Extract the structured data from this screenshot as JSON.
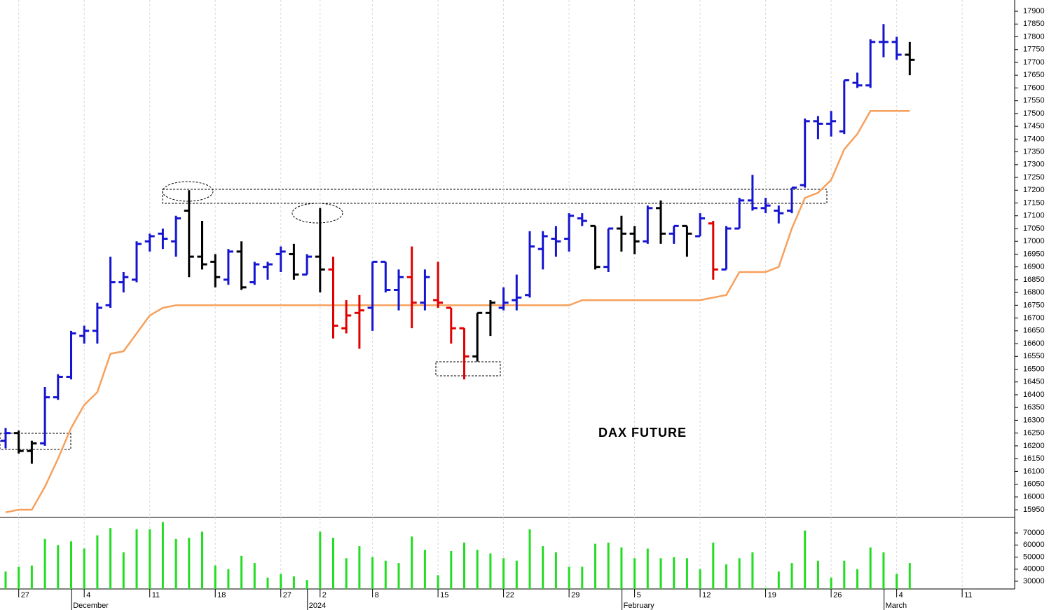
{
  "chart_data": {
    "type": "ohlc",
    "title": "DAX FUTURE",
    "categories": [
      null,
      "27",
      null,
      null,
      null,
      null,
      "4",
      null,
      null,
      null,
      null,
      "11",
      null,
      null,
      null,
      null,
      "18",
      null,
      null,
      null,
      null,
      "27",
      null,
      null,
      "2",
      null,
      null,
      null,
      "8",
      null,
      null,
      null,
      null,
      "15",
      null,
      null,
      null,
      null,
      "22",
      null,
      null,
      null,
      null,
      "29",
      null,
      null,
      null,
      null,
      "5",
      null,
      null,
      null,
      null,
      "12",
      null,
      null,
      null,
      null,
      "19",
      null,
      null,
      null,
      null,
      "26",
      null,
      null,
      null,
      null,
      "4",
      null,
      null,
      null,
      null,
      "11",
      null,
      null,
      null,
      null
    ],
    "month_labels": [
      null,
      null,
      null,
      null,
      null,
      null,
      "December",
      null,
      null,
      null,
      null,
      null,
      null,
      null,
      null,
      null,
      null,
      null,
      null,
      null,
      null,
      null,
      null,
      null,
      "2024",
      null,
      null,
      null,
      null,
      null,
      null,
      null,
      null,
      null,
      null,
      null,
      null,
      null,
      null,
      null,
      null,
      null,
      null,
      null,
      null,
      null,
      null,
      null,
      "February",
      null,
      null,
      null,
      null,
      null,
      null,
      null,
      null,
      null,
      null,
      null,
      null,
      null,
      null,
      null,
      null,
      null,
      null,
      null,
      "March",
      null,
      null,
      null,
      null,
      null,
      null,
      null,
      null,
      null
    ],
    "ohlc": [
      [
        16220,
        16270,
        16190,
        16250
      ],
      [
        16250,
        16260,
        16170,
        16180
      ],
      [
        16180,
        16220,
        16130,
        16210
      ],
      [
        16210,
        16430,
        16200,
        16390
      ],
      [
        16390,
        16480,
        16380,
        16470
      ],
      [
        16470,
        16650,
        16460,
        16640
      ],
      [
        16630,
        16670,
        16600,
        16650
      ],
      [
        16650,
        16760,
        16600,
        16740
      ],
      [
        16750,
        16940,
        16740,
        16840
      ],
      [
        16840,
        16880,
        16800,
        16860
      ],
      [
        16850,
        17000,
        16840,
        16990
      ],
      [
        17000,
        17030,
        16960,
        17020
      ],
      [
        17030,
        17050,
        16970,
        17010
      ],
      [
        17000,
        17100,
        16940,
        17090
      ],
      [
        17120,
        17200,
        16860,
        16940
      ],
      [
        16940,
        17080,
        16890,
        16910
      ],
      [
        16920,
        16950,
        16820,
        16860
      ],
      [
        16850,
        16970,
        16830,
        16960
      ],
      [
        16960,
        17000,
        16810,
        16820
      ],
      [
        16840,
        16920,
        16830,
        16910
      ],
      [
        16900,
        16920,
        16850,
        16910
      ],
      [
        16950,
        16980,
        16880,
        16960
      ],
      [
        16950,
        16990,
        16850,
        16870
      ],
      [
        16870,
        16950,
        16870,
        16940
      ],
      [
        16940,
        17130,
        16800,
        16890
      ],
      [
        16890,
        16940,
        16620,
        16670
      ],
      [
        16660,
        16770,
        16640,
        16710
      ],
      [
        16720,
        16790,
        16580,
        16730
      ],
      [
        16740,
        16920,
        16650,
        16920
      ],
      [
        16920,
        16920,
        16800,
        16810
      ],
      [
        16810,
        16890,
        16730,
        16860
      ],
      [
        16860,
        16980,
        16660,
        16760
      ],
      [
        16760,
        16890,
        16730,
        16860
      ],
      [
        16770,
        16920,
        16740,
        16760
      ],
      [
        16740,
        16740,
        16600,
        16660
      ],
      [
        16660,
        16660,
        16460,
        16550
      ],
      [
        16550,
        16720,
        16530,
        16720
      ],
      [
        16720,
        16770,
        16630,
        16760
      ],
      [
        16740,
        16820,
        16730,
        16760
      ],
      [
        16770,
        16870,
        16730,
        16780
      ],
      [
        16790,
        17040,
        16780,
        16980
      ],
      [
        16970,
        17040,
        16890,
        17020
      ],
      [
        17010,
        17060,
        16940,
        17000
      ],
      [
        17010,
        17110,
        16960,
        17100
      ],
      [
        17090,
        17110,
        17060,
        17080
      ],
      [
        17060,
        17060,
        16890,
        16900
      ],
      [
        16900,
        17050,
        16880,
        17050
      ],
      [
        17050,
        17100,
        16960,
        17030
      ],
      [
        17030,
        17060,
        16950,
        17000
      ],
      [
        17000,
        17140,
        16990,
        17130
      ],
      [
        17130,
        17160,
        16990,
        17030
      ],
      [
        17030,
        17060,
        16990,
        17060
      ],
      [
        17060,
        17060,
        16940,
        17030
      ],
      [
        17020,
        17110,
        17020,
        17090
      ],
      [
        17070,
        17080,
        16850,
        16890
      ],
      [
        16890,
        17060,
        16890,
        17050
      ],
      [
        17050,
        17170,
        17050,
        17160
      ],
      [
        17160,
        17260,
        17120,
        17130
      ],
      [
        17130,
        17170,
        17110,
        17140
      ],
      [
        17120,
        17140,
        17070,
        17110
      ],
      [
        17120,
        17210,
        17110,
        17210
      ],
      [
        17220,
        17480,
        17210,
        17470
      ],
      [
        17470,
        17490,
        17400,
        17460
      ],
      [
        17460,
        17510,
        17410,
        17470
      ],
      [
        17430,
        17630,
        17420,
        17630
      ],
      [
        17620,
        17660,
        17600,
        17610
      ],
      [
        17610,
        17790,
        17600,
        17780
      ],
      [
        17780,
        17850,
        17720,
        17780
      ],
      [
        17780,
        17800,
        17710,
        17730
      ],
      [
        17730,
        17780,
        17650,
        17710
      ],
      null,
      null,
      null,
      null,
      null,
      null,
      null,
      null
    ],
    "bar_colors": [
      "#1414d2",
      "#000000",
      "#000000",
      "#1414d2",
      "#1414d2",
      "#1414d2",
      "#1414d2",
      "#1414d2",
      "#1414d2",
      "#1414d2",
      "#1414d2",
      "#1414d2",
      "#1414d2",
      "#1414d2",
      "#000000",
      "#000000",
      "#000000",
      "#1414d2",
      "#000000",
      "#1414d2",
      "#1414d2",
      "#1414d2",
      "#000000",
      "#1414d2",
      "#000000",
      "#e00000",
      "#e00000",
      "#e00000",
      "#1414d2",
      "#1414d2",
      "#1414d2",
      "#e00000",
      "#1414d2",
      "#e00000",
      "#e00000",
      "#e00000",
      "#000000",
      "#000000",
      "#1414d2",
      "#1414d2",
      "#1414d2",
      "#1414d2",
      "#1414d2",
      "#1414d2",
      "#1414d2",
      "#000000",
      "#1414d2",
      "#000000",
      "#000000",
      "#1414d2",
      "#000000",
      "#1414d2",
      "#000000",
      "#1414d2",
      "#e00000",
      "#1414d2",
      "#1414d2",
      "#1414d2",
      "#1414d2",
      "#1414d2",
      "#1414d2",
      "#1414d2",
      "#1414d2",
      "#1414d2",
      "#1414d2",
      "#1414d2",
      "#1414d2",
      "#1414d2",
      "#1414d2",
      "#000000",
      null,
      null,
      null,
      null,
      null,
      null,
      null,
      null
    ],
    "stop_line": {
      "color": "#f7a05c",
      "values": [
        15940,
        15950,
        15950,
        16040,
        16150,
        16270,
        16360,
        16410,
        16560,
        16570,
        16640,
        16710,
        16740,
        16750,
        16750,
        16750,
        16750,
        16750,
        16750,
        16750,
        16750,
        16750,
        16750,
        16750,
        16750,
        16750,
        16750,
        16750,
        16750,
        16750,
        16750,
        16750,
        16750,
        16750,
        16750,
        16750,
        16750,
        16750,
        16750,
        16750,
        16750,
        16750,
        16750,
        16750,
        16770,
        16770,
        16770,
        16770,
        16770,
        16770,
        16770,
        16770,
        16770,
        16770,
        16780,
        16790,
        16880,
        16880,
        16880,
        16900,
        17050,
        17170,
        17190,
        17240,
        17360,
        17420,
        17510,
        17510,
        17510,
        17510,
        null,
        null,
        null,
        null,
        null,
        null,
        null,
        null
      ]
    },
    "ylim": [
      15920,
      17944
    ],
    "yticks": [
      15950,
      16000,
      16050,
      16100,
      16150,
      16200,
      16250,
      16300,
      16350,
      16400,
      16450,
      16500,
      16550,
      16600,
      16650,
      16700,
      16750,
      16800,
      16850,
      16900,
      16950,
      17000,
      17050,
      17100,
      17150,
      17200,
      17250,
      17300,
      17350,
      17400,
      17450,
      17500,
      17550,
      17600,
      17650,
      17700,
      17750,
      17800,
      17850,
      17900
    ],
    "volume": {
      "type": "bar",
      "color": "#22dd22",
      "ylim": [
        23600,
        82800
      ],
      "yticks": [
        30000,
        40000,
        50000,
        60000,
        70000
      ],
      "values": [
        38000,
        42000,
        43000,
        65000,
        60000,
        63000,
        57000,
        68000,
        74000,
        54000,
        73000,
        73000,
        79000,
        65000,
        66000,
        71000,
        43000,
        40000,
        51000,
        45000,
        33000,
        36000,
        34000,
        31000,
        71000,
        66000,
        49000,
        59000,
        50000,
        47000,
        45000,
        67000,
        56000,
        35000,
        55000,
        62000,
        56000,
        53000,
        49000,
        47000,
        73000,
        59000,
        54000,
        42000,
        42000,
        61000,
        62000,
        58000,
        49000,
        57000,
        49000,
        50000,
        49000,
        40000,
        62000,
        44000,
        49000,
        54000,
        24500,
        38000,
        45000,
        72000,
        47000,
        33000,
        47000,
        40000,
        58000,
        54000,
        36000,
        45000,
        null,
        null,
        null,
        null,
        null,
        null,
        null,
        null
      ]
    }
  }
}
